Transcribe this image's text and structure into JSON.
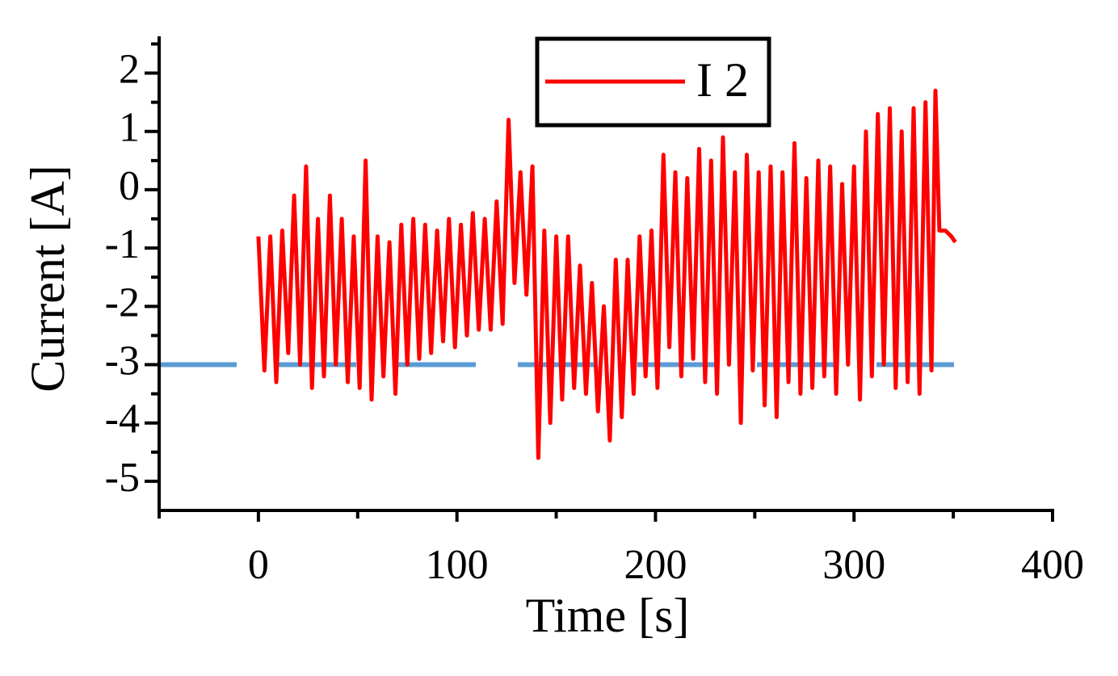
{
  "chart_data": {
    "type": "line",
    "xlabel": "Time [s]",
    "ylabel": "Current [A]",
    "xlim": [
      -50,
      400
    ],
    "ylim": [
      -5.5,
      2.7
    ],
    "xticks": [
      0,
      100,
      200,
      300,
      400
    ],
    "yticks": [
      -5,
      -4,
      -3,
      -2,
      -1,
      0,
      1,
      2
    ],
    "xticks_minor": [
      -50,
      50,
      150,
      250,
      350
    ],
    "yticks_minor": [
      -4.5,
      -3.5,
      -2.5,
      -1.5,
      -0.5,
      0.5,
      1.5,
      2.5
    ],
    "legend": "top",
    "hline": {
      "y": -3,
      "x": [
        -50,
        352
      ],
      "color": "#5b9bd5",
      "dashed": true
    },
    "x": [
      0,
      3,
      6,
      9,
      12,
      15,
      18,
      21,
      24,
      27,
      30,
      33,
      36,
      39,
      42,
      45,
      48,
      51,
      54,
      57,
      60,
      63,
      66,
      69,
      72,
      75,
      78,
      81,
      84,
      87,
      90,
      93,
      96,
      99,
      102,
      105,
      108,
      111,
      114,
      117,
      120,
      123,
      126,
      129,
      132,
      135,
      138,
      141,
      144,
      147,
      150,
      153,
      156,
      159,
      162,
      165,
      168,
      171,
      174,
      177,
      180,
      183,
      186,
      189,
      192,
      195,
      198,
      201,
      204,
      207,
      210,
      213,
      216,
      219,
      222,
      225,
      228,
      231,
      234,
      237,
      240,
      243,
      246,
      249,
      252,
      255,
      258,
      261,
      264,
      267,
      270,
      273,
      276,
      279,
      282,
      285,
      288,
      291,
      294,
      297,
      300,
      303,
      306,
      309,
      312,
      315,
      318,
      321,
      324,
      327,
      330,
      333,
      336,
      339,
      341,
      343,
      346,
      349,
      351
    ],
    "series": [
      {
        "name": "I 2",
        "color": "#ff0000",
        "values": [
          -0.8,
          -3.1,
          -0.8,
          -3.3,
          -0.7,
          -2.8,
          -0.1,
          -3.0,
          0.4,
          -3.4,
          -0.5,
          -3.2,
          -0.1,
          -3.0,
          -0.5,
          -3.3,
          -0.8,
          -3.4,
          0.5,
          -3.6,
          -0.8,
          -3.2,
          -0.9,
          -3.5,
          -0.6,
          -3.0,
          -0.5,
          -2.9,
          -0.6,
          -2.8,
          -0.7,
          -2.6,
          -0.5,
          -2.7,
          -0.6,
          -2.5,
          -0.4,
          -2.4,
          -0.5,
          -2.4,
          -0.2,
          -2.3,
          1.2,
          -1.6,
          0.3,
          -1.8,
          0.4,
          -4.6,
          -0.7,
          -4.0,
          -0.8,
          -3.6,
          -0.8,
          -3.4,
          -1.3,
          -3.5,
          -1.6,
          -3.8,
          -2.0,
          -4.3,
          -1.2,
          -3.9,
          -1.2,
          -3.5,
          -0.8,
          -3.2,
          -0.7,
          -3.4,
          0.6,
          -2.7,
          0.3,
          -3.2,
          0.2,
          -2.9,
          0.7,
          -3.3,
          0.5,
          -3.5,
          0.9,
          -3.0,
          0.3,
          -4.0,
          0.6,
          -3.1,
          0.3,
          -3.7,
          0.4,
          -3.9,
          0.3,
          -3.3,
          0.8,
          -3.5,
          0.2,
          -3.4,
          0.5,
          -3.2,
          0.4,
          -3.5,
          0.1,
          -3.0,
          0.4,
          -3.6,
          1.0,
          -3.2,
          1.3,
          -3.0,
          1.4,
          -3.4,
          1.0,
          -3.3,
          1.4,
          -3.5,
          1.5,
          -3.1,
          1.7,
          -0.7,
          -0.7,
          -0.8,
          -0.9
        ]
      }
    ]
  }
}
